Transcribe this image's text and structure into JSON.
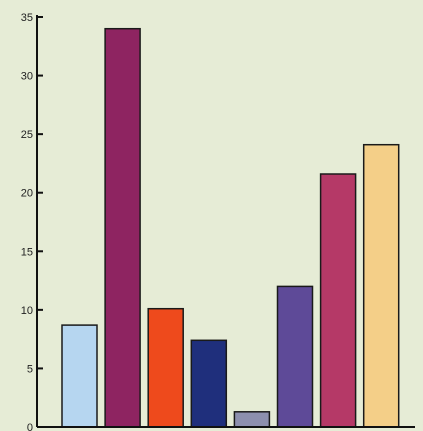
{
  "chart_data": {
    "type": "bar",
    "title": "",
    "xlabel": "",
    "ylabel": "",
    "ylim": [
      0,
      35
    ],
    "y_ticks": [
      0,
      5,
      10,
      15,
      20,
      25,
      30,
      35
    ],
    "y_tick_labels": [
      "0",
      "5",
      "10",
      "15",
      "20",
      "25",
      "30",
      "35"
    ],
    "grid": false,
    "values": [
      8.7,
      34,
      10.1,
      7.4,
      1.3,
      12,
      21.6,
      24.1
    ],
    "colors": [
      "#b6d6f0",
      "#8e2461",
      "#ee4a1c",
      "#1f2f7c",
      "#8d8fae",
      "#5e4a98",
      "#b53967",
      "#f4cf88"
    ]
  }
}
